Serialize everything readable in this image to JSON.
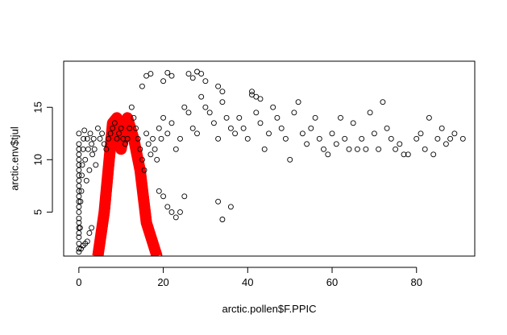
{
  "chart_data": {
    "type": "scatter",
    "title": "",
    "xlabel": "arctic.pollen$F.PPIC",
    "ylabel": "arctic.env$tjul",
    "xlim": [
      -3.6,
      93.8
    ],
    "ylim": [
      0.8,
      19.4
    ],
    "xticks": [
      0,
      20,
      40,
      60,
      80
    ],
    "yticks": [
      5,
      10,
      15
    ],
    "grid": false,
    "legend": "none",
    "point_color": "#000000",
    "overlay_color": "#ff0000",
    "series": [
      {
        "kind": "points",
        "x": [
          0,
          0,
          0,
          0,
          0,
          0,
          0,
          0,
          0,
          0,
          0,
          0,
          0,
          0,
          0,
          0,
          0,
          0,
          0,
          0,
          0,
          0,
          0.3,
          0.4,
          0.6,
          0.7,
          0.8,
          1.0,
          1.1,
          1.3,
          1.5,
          1.8,
          2.0,
          2.2,
          2.5,
          2.7,
          3.0,
          3.2,
          3.5,
          3.7,
          4.0,
          4.5,
          5.0,
          5.5,
          6.0,
          6.5,
          7.0,
          7.5,
          8.0,
          8.5,
          9.0,
          9.5,
          10.0,
          10.5,
          11.0,
          11.5,
          12.0,
          12.5,
          13.0,
          13.5,
          14.0,
          14.5,
          15.0,
          15.5,
          16.0,
          16.5,
          17.0,
          17.5,
          18.0,
          18.5,
          19.0,
          19.5,
          20.0,
          21.0,
          22.0,
          23.0,
          24.0,
          25.0,
          26.0,
          27.0,
          28.0,
          29.0,
          30.0,
          31.0,
          32.0,
          33.0,
          34.0,
          35.0,
          36.0,
          37.0,
          38.0,
          39.0,
          40.0,
          41.0,
          42.0,
          43.0,
          44.0,
          45.0,
          46.0,
          47.0,
          48.0,
          49.0,
          50.0,
          51.0,
          52.0,
          53.0,
          54.0,
          55.0,
          56.0,
          57.0,
          58.0,
          59.0,
          60.0,
          61.0,
          62.0,
          63.0,
          64.0,
          65.0,
          66.0,
          67.0,
          68.0,
          69.0,
          70.0,
          71.0,
          72.0,
          73.0,
          74.0,
          75.0,
          76.0,
          77.0,
          78.0,
          80.0,
          81.0,
          82.0,
          83.0,
          84.0,
          85.0,
          86.0,
          87.0,
          88.0,
          89.0,
          91.0,
          15.0,
          16.0,
          17.0,
          20.0,
          21.0,
          22.0,
          26.0,
          27.0,
          28.0,
          29.0,
          30.0,
          33.0,
          34.0,
          41.0,
          42.0,
          43.0,
          0,
          0.5,
          1.0,
          1.5,
          2.0,
          2.5,
          3.0,
          19.0,
          20.0,
          21.0,
          22.0,
          23.0,
          24.0,
          25.0,
          33.0,
          34.0,
          36.0
        ],
        "y": [
          1.5,
          2.0,
          2.6,
          3.0,
          3.5,
          4.0,
          4.4,
          5.0,
          5.5,
          6.0,
          6.5,
          7.0,
          7.5,
          8.0,
          8.5,
          9.0,
          9.5,
          10.0,
          10.5,
          11.0,
          11.5,
          12.5,
          3.5,
          6.0,
          7.0,
          8.5,
          9.5,
          11.0,
          12.0,
          12.8,
          10.0,
          8.0,
          12.0,
          11.0,
          9.0,
          12.5,
          11.5,
          10.5,
          12.0,
          11.0,
          9.5,
          13.0,
          12.0,
          12.5,
          11.5,
          11.0,
          12.0,
          12.5,
          13.0,
          13.5,
          12.0,
          12.5,
          13.0,
          12.0,
          11.5,
          12.0,
          13.0,
          15.0,
          14.0,
          13.0,
          12.0,
          11.0,
          10.0,
          9.0,
          12.5,
          11.5,
          10.5,
          12.0,
          11.0,
          10.0,
          13.0,
          12.0,
          14.0,
          12.5,
          13.5,
          11.0,
          12.0,
          15.0,
          14.5,
          13.0,
          12.5,
          16.0,
          15.0,
          14.5,
          13.5,
          12.0,
          15.5,
          14.0,
          13.0,
          12.5,
          14.0,
          13.0,
          12.0,
          16.5,
          14.5,
          13.5,
          11.0,
          12.5,
          15.0,
          14.0,
          13.0,
          12.0,
          10.0,
          14.5,
          15.5,
          12.5,
          11.5,
          13.0,
          14.0,
          12.0,
          11.0,
          10.5,
          12.5,
          11.5,
          14.0,
          12.0,
          11.0,
          13.5,
          11.0,
          12.0,
          11.0,
          14.5,
          12.5,
          11.0,
          15.5,
          13.0,
          12.0,
          11.0,
          11.5,
          10.5,
          10.5,
          12.0,
          12.5,
          11.0,
          14.0,
          10.5,
          12.0,
          13.0,
          11.5,
          12.0,
          12.5,
          12.0,
          17.0,
          18.0,
          18.2,
          17.5,
          18.3,
          18.0,
          18.2,
          17.8,
          18.4,
          18.2,
          17.5,
          17.0,
          16.5,
          16.2,
          16.0,
          15.8,
          1.2,
          1.5,
          1.8,
          2.0,
          2.2,
          3.0,
          3.5,
          7.0,
          6.5,
          5.5,
          5.0,
          4.5,
          5.0,
          6.5,
          6.0,
          4.3,
          5.5
        ]
      },
      {
        "kind": "overlay-line",
        "x": [
          4.5,
          6.0,
          8.0,
          9.0,
          10.0,
          11.5,
          13.0,
          14.5,
          16.0,
          18.5
        ],
        "y": [
          0.8,
          5.0,
          13.5,
          14.0,
          11.0,
          14.0,
          12.0,
          9.0,
          4.0,
          0.8
        ]
      }
    ]
  }
}
